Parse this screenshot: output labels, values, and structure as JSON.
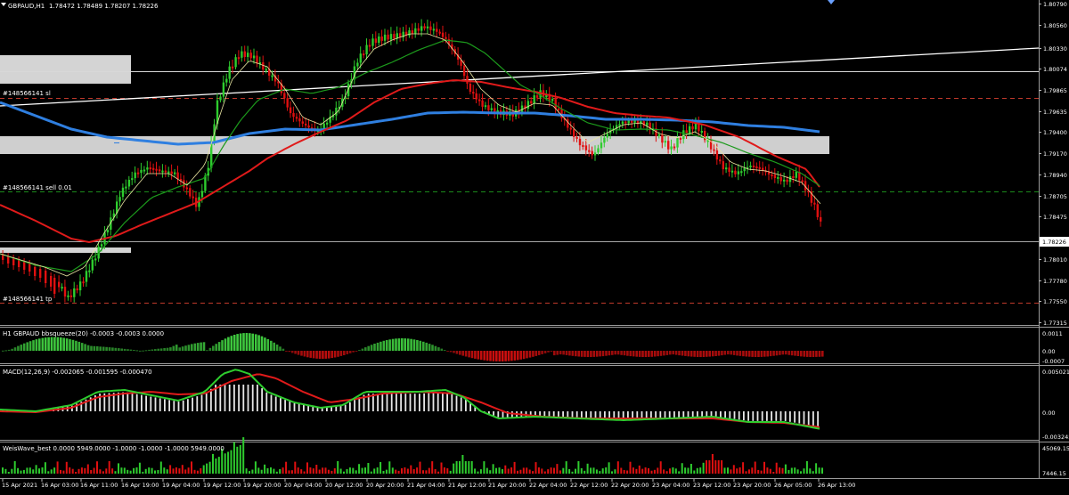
{
  "chart_header": {
    "symbol_label": "GBPAUD,H1",
    "ohlc": "1.78472 1.78489 1.78207 1.78226"
  },
  "price_axis": [
    "1.80790",
    "1.80560",
    "1.80330",
    "1.80074",
    "1.79865",
    "1.79635",
    "1.79400",
    "1.79170",
    "1.78940",
    "1.78705",
    "1.78475",
    "1.78226",
    "1.78010",
    "1.77780",
    "1.77550",
    "1.77315"
  ],
  "current_price": "1.78226",
  "order_lines": {
    "sl_label": "#148566141 sl",
    "entry_label": "#148566141 sell 0.01",
    "tp_label": "#148566141 tp"
  },
  "time_axis": [
    "15 Apr 2021",
    "16 Apr 03:00",
    "16 Apr 11:00",
    "16 Apr 19:00",
    "19 Apr 04:00",
    "19 Apr 12:00",
    "19 Apr 20:00",
    "20 Apr 04:00",
    "20 Apr 12:00",
    "20 Apr 20:00",
    "21 Apr 04:00",
    "21 Apr 12:00",
    "21 Apr 20:00",
    "22 Apr 04:00",
    "22 Apr 12:00",
    "22 Apr 20:00",
    "23 Apr 04:00",
    "23 Apr 12:00",
    "23 Apr 20:00",
    "26 Apr 05:00",
    "26 Apr 13:00"
  ],
  "indicators": {
    "bbsqueeze": {
      "title": "H1 GBPAUD bbsqueeze(20) -0.0003 -0.0003 0.0000",
      "scale": [
        "0.0011",
        "0.00",
        "-0.0007"
      ]
    },
    "macd": {
      "title": "MACD(12,26,9) -0.002065 -0.001595 -0.000470",
      "scale": [
        "0.005021",
        "0.00",
        "-0.003245"
      ]
    },
    "weiswave": {
      "title": "WeisWave_best 0.0000 5949.0000 -1.0000 -1.0000 -1.0000 5949.0000",
      "scale": [
        "45069.15",
        "7446.15"
      ]
    }
  },
  "colors": {
    "bull": "#2ecc2e",
    "bear": "#e01010",
    "ma_blue": "#2f7fe0",
    "ma_red": "#e01a1a",
    "ma_green": "#1c9a1c",
    "ma_thin": "#e8e4a0",
    "zone": "#d4d4d4"
  }
}
